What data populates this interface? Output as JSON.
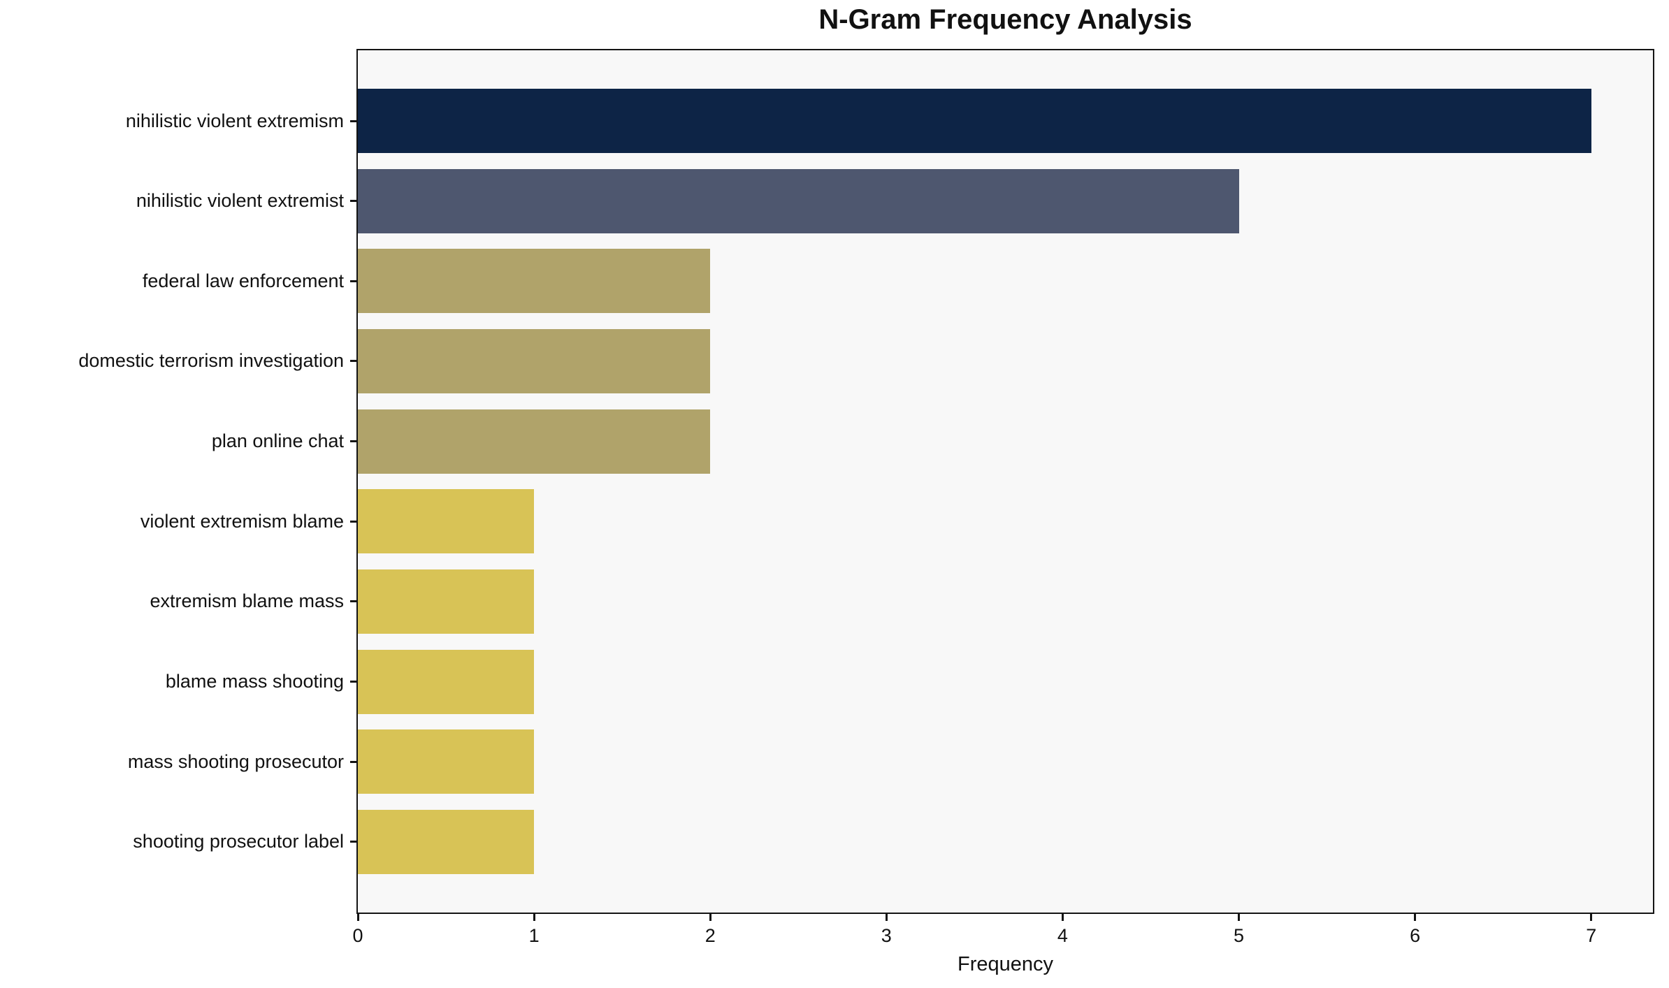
{
  "chart_data": {
    "type": "bar",
    "orientation": "horizontal",
    "title": "N-Gram Frequency Analysis",
    "xlabel": "Frequency",
    "ylabel": "",
    "categories": [
      "nihilistic violent extremism",
      "nihilistic violent extremist",
      "federal law enforcement",
      "domestic terrorism investigation",
      "plan online chat",
      "violent extremism blame",
      "extremism blame mass",
      "blame mass shooting",
      "mass shooting prosecutor",
      "shooting prosecutor label"
    ],
    "values": [
      7,
      5,
      2,
      2,
      2,
      1,
      1,
      1,
      1,
      1
    ],
    "bar_colors": [
      "#0d2446",
      "#4e576f",
      "#b0a36a",
      "#b0a36a",
      "#b0a36a",
      "#d8c356",
      "#d8c356",
      "#d8c356",
      "#d8c356",
      "#d8c356"
    ],
    "xticks": [
      0,
      1,
      2,
      3,
      4,
      5,
      6,
      7
    ],
    "xlim": [
      0,
      7.35
    ],
    "grid": false,
    "legend": "none",
    "plot_background": "#f8f8f8",
    "figure_background": "#ffffff",
    "axis_color": "#141414"
  }
}
